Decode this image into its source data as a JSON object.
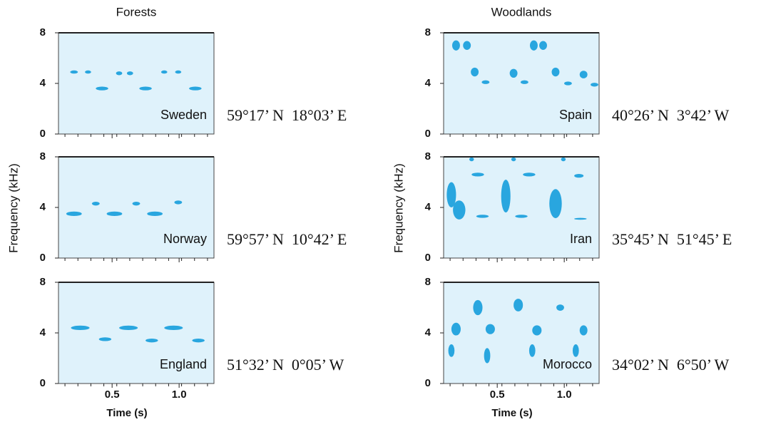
{
  "chart_data": {
    "type": "spectrogram",
    "ylabel": "Frequency (kHz)",
    "xlabel": "Time (s)",
    "ylim": [
      0,
      8
    ],
    "yticks": [
      0,
      4,
      8
    ],
    "xlim": [
      0.1,
      1.26
    ],
    "xticks": [
      0.5,
      {
        "value": 1,
        "label": "1.0"
      }
    ],
    "color": "#29a6df",
    "columns": [
      {
        "title": "Forests",
        "panels": [
          {
            "site": "Sweden",
            "coords": "59°17’ N  18°03’ E"
          },
          {
            "site": "Norway",
            "coords": "59°57’ N  10°42’ E"
          },
          {
            "site": "England",
            "coords": "51°32’ N  0°05’ W"
          }
        ]
      },
      {
        "title": "Woodlands",
        "panels": [
          {
            "site": "Spain",
            "coords": "40°26’ N  3°42’ W"
          },
          {
            "site": "Iran",
            "coords": "35°45’ N  51°45’ E"
          },
          {
            "site": "Morocco",
            "coords": "34°02’ N  6°50’ W"
          }
        ]
      }
    ]
  }
}
